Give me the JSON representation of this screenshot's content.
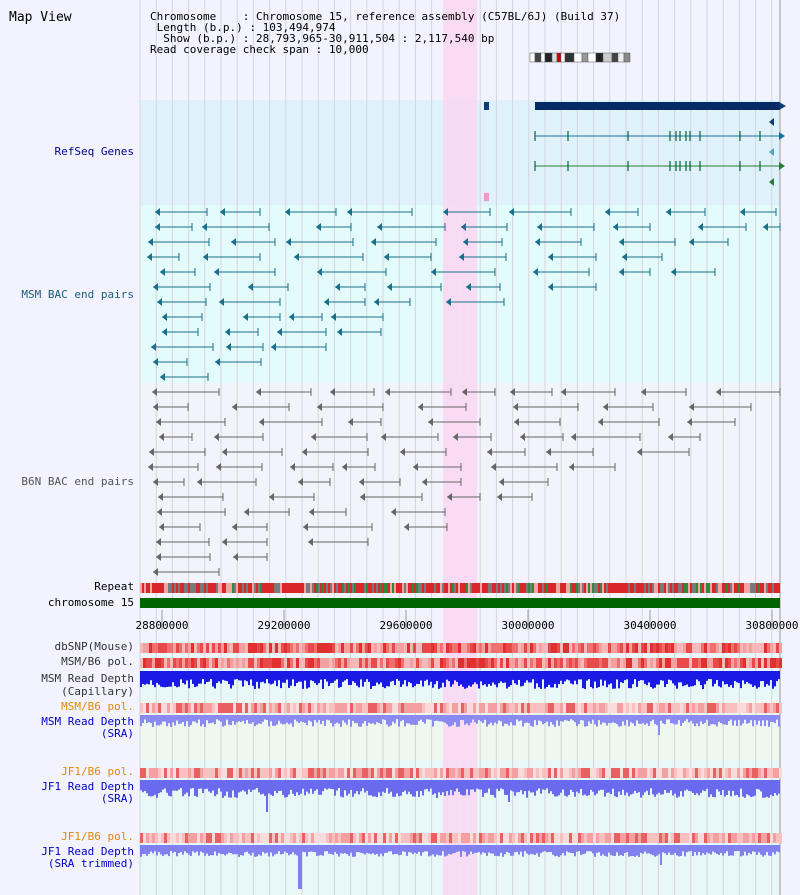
{
  "title": "Map View",
  "info": {
    "chromosome_key": "Chromosome",
    "chromosome_val": "Chromosome 15, reference assembly (C57BL/6J) (Build 37)",
    "length_key": "Length (b.p.)",
    "length_val": "103,494,974",
    "show_key": "Show (b.p.)",
    "show_val": "28,793,965-30,911,504 : 2,117,540 bp",
    "span_key": "Read coverage check span",
    "span_val": "10,000"
  },
  "tracks": {
    "refseq": "RefSeq Genes",
    "msm_bac": "MSM BAC end pairs",
    "b6n_bac": "B6N BAC end pairs",
    "repeat": "Repeat",
    "chromosome": "chromosome 15",
    "dbsnp": "dbSNP(Mouse)",
    "msm_pol_1": "MSM/B6 pol.",
    "msm_depth_cap_1": "MSM Read Depth",
    "msm_depth_cap_2": "(Capillary)",
    "msm_pol_2": "MSM/B6 pol.",
    "msm_depth_sra_1": "MSM Read Depth",
    "msm_depth_sra_2": "(SRA)",
    "jf1_pol_1": "JF1/B6 pol.",
    "jf1_depth_sra_1": "JF1 Read Depth",
    "jf1_depth_sra_2": "(SRA)",
    "jf1_pol_2": "JF1/B6 pol.",
    "jf1_depth_trim_1": "JF1 Read Depth",
    "jf1_depth_trim_2": "(SRA trimmed)"
  },
  "axis": {
    "ticks": [
      "28800000",
      "29200000",
      "29600000",
      "30000000",
      "30400000",
      "30800000"
    ]
  },
  "colors": {
    "refseq_bg": "#dff2fb",
    "msm_bg": "#e4fbfb",
    "b6n_bg": "#f3f3fb",
    "highlight": "#f9d8f3",
    "refseq_label": "#00008b",
    "msm_label": "#1a5c7a",
    "b6n_label": "#555555",
    "orange_label": "#e08a00",
    "blue_label": "#0000c8",
    "chromosome_bar": "#006400"
  }
}
